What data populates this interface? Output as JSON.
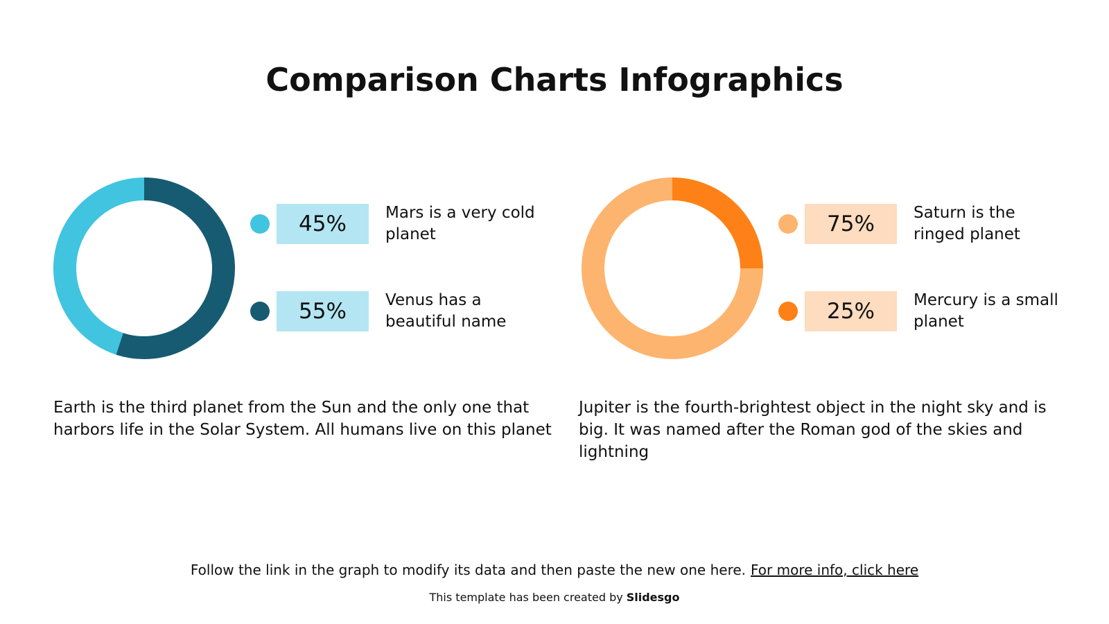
{
  "title": "Comparison Charts Infographics",
  "chart_data": [
    {
      "type": "pie",
      "categories": [
        "Mars is a very cold planet",
        "Venus has a beautiful name"
      ],
      "values": [
        45,
        55
      ],
      "value_labels": [
        "45%",
        "55%"
      ],
      "colors": [
        "#40c4e0",
        "#175b73"
      ],
      "label_backgrounds": [
        "#b3e6f2",
        "#b3e6f2"
      ],
      "description": "Earth is the third planet from the Sun and the only one that harbors life in the Solar System. All humans live on this planet"
    },
    {
      "type": "pie",
      "categories": [
        "Saturn is the ringed planet",
        "Mercury is a small planet"
      ],
      "values": [
        75,
        25
      ],
      "value_labels": [
        "75%",
        "25%"
      ],
      "colors": [
        "#fdb46e",
        "#fd8116"
      ],
      "label_backgrounds": [
        "#fddcbf",
        "#fddcbf"
      ],
      "description": "Jupiter is the fourth-brightest object in the night sky and is big. It was named after the Roman god of the skies and lightning"
    }
  ],
  "footer": {
    "text": "Follow the link in the graph to modify its data and then paste the new one here.",
    "link": "For more info, click here"
  },
  "credit": {
    "text": "This template has been created by",
    "brand": "Slidesgo"
  }
}
